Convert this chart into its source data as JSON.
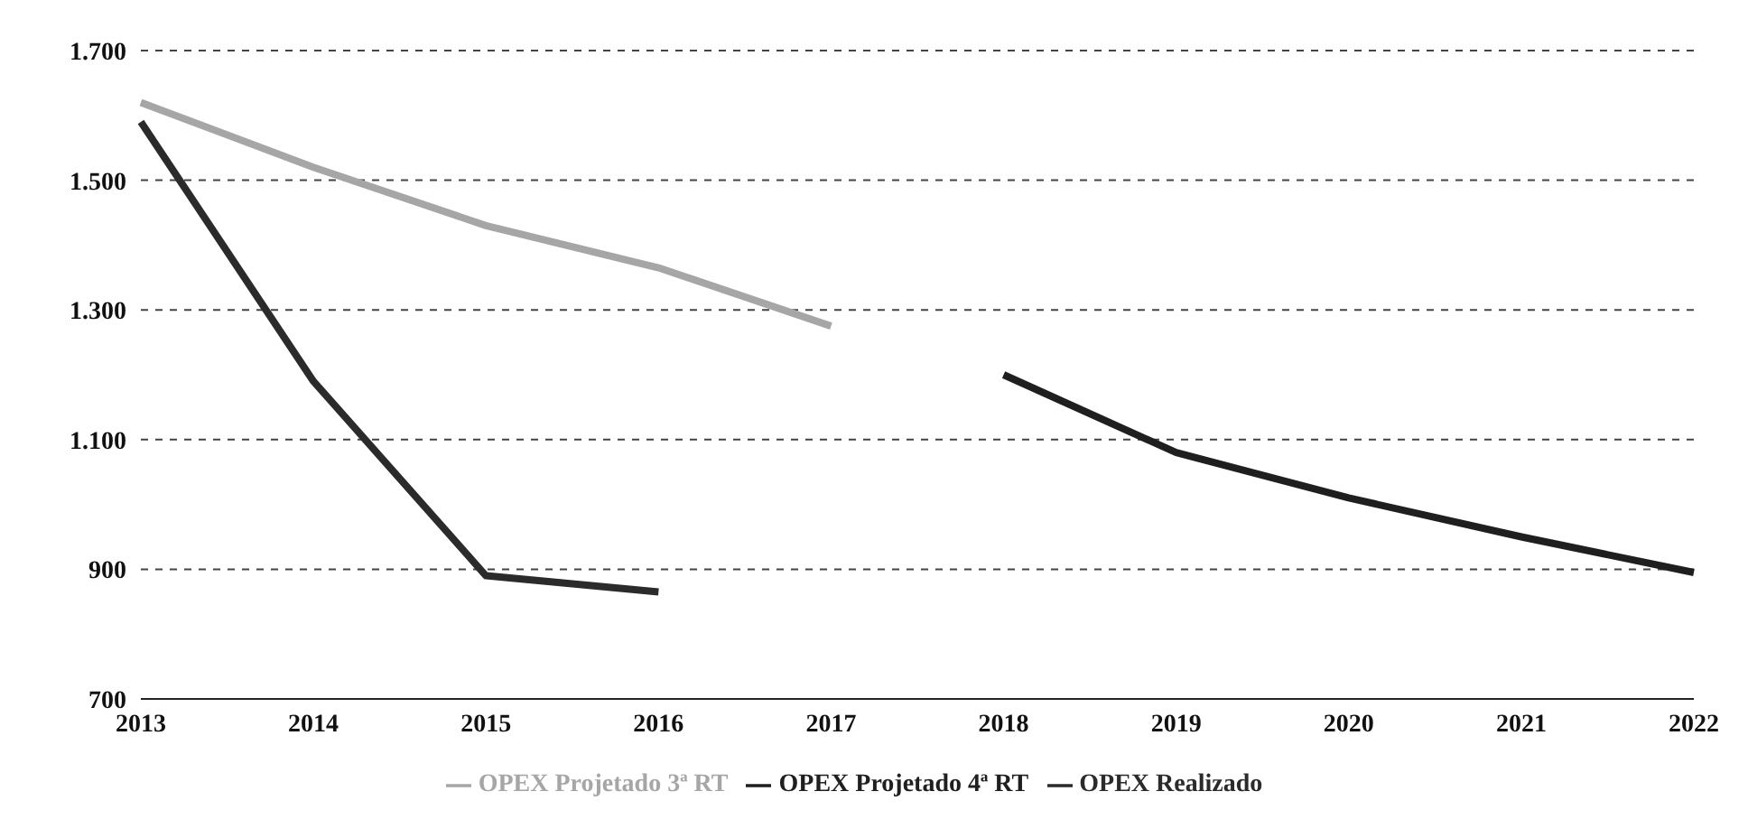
{
  "chart_data": {
    "type": "line",
    "categories": [
      "2013",
      "2014",
      "2015",
      "2016",
      "2017",
      "2018",
      "2019",
      "2020",
      "2021",
      "2022"
    ],
    "series": [
      {
        "name": "OPEX Realizado",
        "color": "#2b2b2b",
        "values": [
          1590,
          1190,
          890,
          865,
          null,
          null,
          null,
          null,
          null,
          null
        ]
      },
      {
        "name": "OPEX Projetado 3ª RT",
        "color": "#a6a6a6",
        "values": [
          1620,
          1520,
          1430,
          1365,
          1275,
          null,
          null,
          null,
          null,
          null
        ]
      },
      {
        "name": "OPEX Projetado 4ª RT",
        "color": "#1f1f1f",
        "values": [
          null,
          null,
          null,
          null,
          null,
          1200,
          1080,
          1010,
          950,
          895
        ]
      }
    ],
    "ylim": [
      700,
      1700
    ],
    "yticks": [
      {
        "value": 700,
        "label": "700"
      },
      {
        "value": 900,
        "label": "900"
      },
      {
        "value": 1100,
        "label": "1.100"
      },
      {
        "value": 1300,
        "label": "1.300"
      },
      {
        "value": 1500,
        "label": "1.500"
      },
      {
        "value": 1700,
        "label": "1.700"
      }
    ],
    "grid": "y",
    "legend": "bottom",
    "marker": "none",
    "line_style": "solid"
  }
}
